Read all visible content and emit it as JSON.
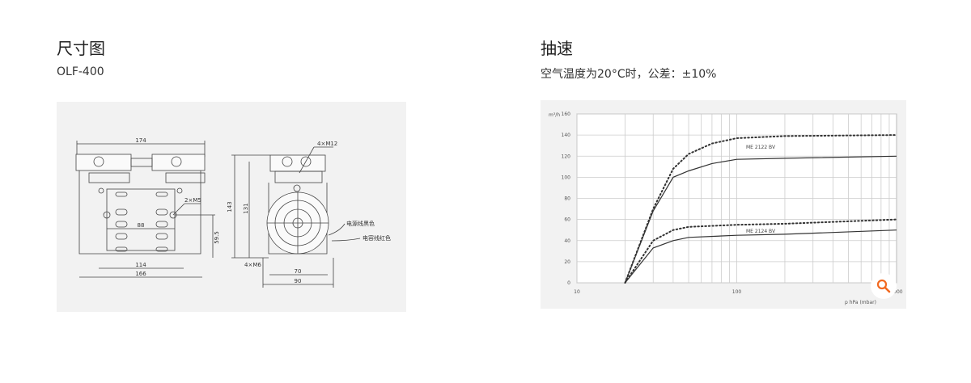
{
  "left": {
    "title": "尺寸图",
    "model": "OLF-400",
    "drawing": {
      "dims": [
        "174",
        "166",
        "114",
        "88",
        "59.5",
        "143",
        "131",
        "70",
        "90"
      ],
      "labels": {
        "m12": "4×M12",
        "m5": "2×M5",
        "m6": "4×M6",
        "power": "电源线黑色",
        "cap": "电容线红色"
      }
    }
  },
  "right": {
    "title": "抽速",
    "subtitle": "空气温度为20°C时，公差：±10%"
  },
  "colors": {
    "accent": "#f26a21",
    "panel": "#f2f2f2"
  },
  "zoom_icon": "magnifier-icon",
  "chart_data": {
    "type": "line",
    "x_scale": "log",
    "xlim": [
      10,
      1000
    ],
    "ylim": [
      0,
      160
    ],
    "x_ticks": [
      "10",
      "100",
      "1000"
    ],
    "y_ticks": [
      "0",
      "20",
      "40",
      "60",
      "80",
      "100",
      "120",
      "140",
      "160"
    ],
    "ylabel": "m³/h",
    "xlabel": "p hPa (mbar)",
    "grid": true,
    "annotations": [
      "ME 2122 BV",
      "ME 2124 BV"
    ],
    "series": [
      {
        "style": "dotted",
        "x": [
          20,
          30,
          40,
          50,
          70,
          100,
          200,
          1000
        ],
        "y": [
          0,
          70,
          108,
          122,
          132,
          137,
          139,
          140
        ]
      },
      {
        "style": "solid",
        "x": [
          20,
          30,
          40,
          50,
          70,
          100,
          200,
          1000
        ],
        "y": [
          0,
          68,
          100,
          106,
          113,
          117,
          118,
          120
        ]
      },
      {
        "style": "dotted",
        "x": [
          20,
          30,
          40,
          50,
          100,
          200,
          1000
        ],
        "y": [
          0,
          40,
          50,
          53,
          55,
          56,
          60
        ]
      },
      {
        "style": "solid",
        "x": [
          20,
          30,
          40,
          50,
          100,
          200,
          1000
        ],
        "y": [
          0,
          33,
          40,
          43,
          45,
          46,
          50
        ]
      }
    ]
  }
}
